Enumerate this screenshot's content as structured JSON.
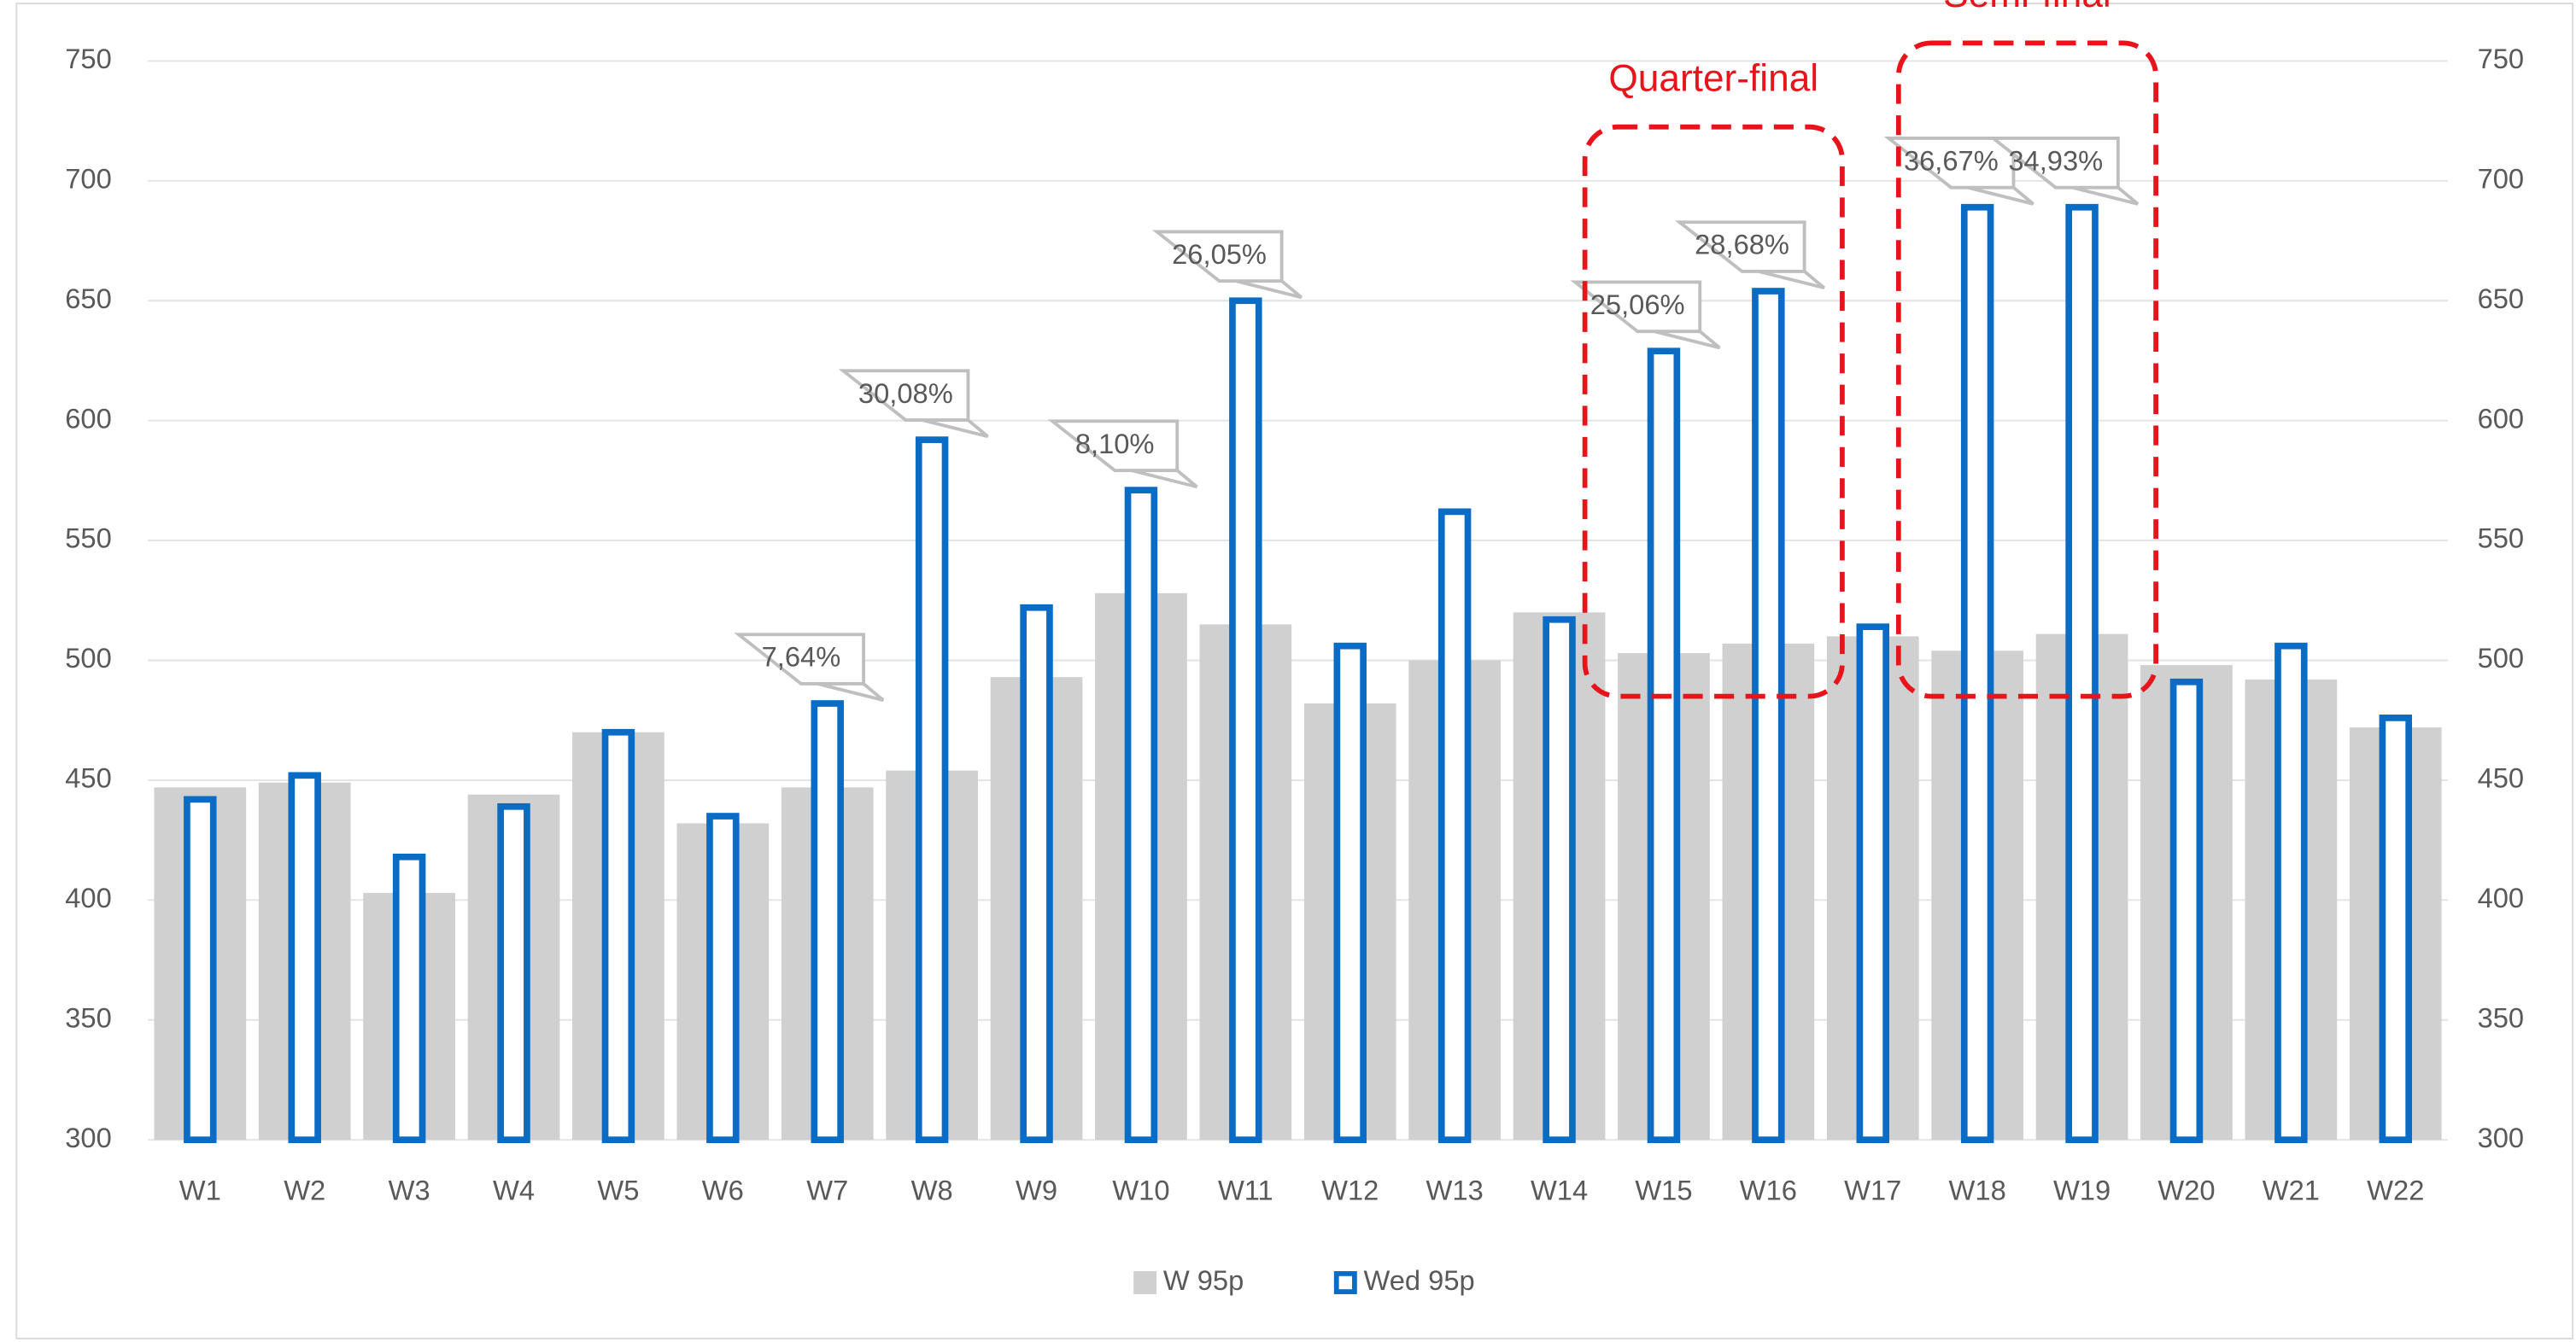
{
  "chart_data": {
    "type": "bar",
    "categories": [
      "W1",
      "W2",
      "W3",
      "W4",
      "W5",
      "W6",
      "W7",
      "W8",
      "W9",
      "W10",
      "W11",
      "W12",
      "W13",
      "W14",
      "W15",
      "W16",
      "W17",
      "W18",
      "W19",
      "W20",
      "W21",
      "W22"
    ],
    "series": [
      {
        "name": "W 95p",
        "color": "#d0d0d0",
        "style": "filled",
        "values": [
          447,
          449,
          403,
          444,
          470,
          432,
          447,
          454,
          493,
          528,
          515,
          482,
          500,
          520,
          503,
          507,
          510,
          504,
          511,
          498,
          492,
          472
        ]
      },
      {
        "name": "Wed 95p",
        "color": "#0a6cc4",
        "style": "outline",
        "values": [
          442,
          452,
          418,
          439,
          470,
          435,
          482,
          592,
          522,
          571,
          650,
          506,
          562,
          517,
          629,
          654,
          514,
          689,
          689,
          491,
          506,
          476
        ]
      }
    ],
    "callouts": [
      {
        "category": "W7",
        "label": "7,64%"
      },
      {
        "category": "W8",
        "label": "30,08%"
      },
      {
        "category": "W10",
        "label": "8,10%"
      },
      {
        "category": "W11",
        "label": "26,05%"
      },
      {
        "category": "W15",
        "label": "25,06%"
      },
      {
        "category": "W16",
        "label": "28,68%"
      },
      {
        "category": "W18",
        "label": "36,67%"
      },
      {
        "category": "W19",
        "label": "34,93%"
      }
    ],
    "annotations": [
      {
        "text": "Quarter-final",
        "categories": [
          "W15",
          "W16"
        ],
        "color": "#e8141c"
      },
      {
        "text": "Semi-final",
        "categories": [
          "W18",
          "W19"
        ],
        "color": "#e8141c"
      }
    ],
    "ylim": [
      300,
      750
    ],
    "yticks": [
      300,
      350,
      400,
      450,
      500,
      550,
      600,
      650,
      700,
      750
    ],
    "y2lim": [
      300,
      750
    ],
    "y2ticks": [
      300,
      350,
      400,
      450,
      500,
      550,
      600,
      650,
      700,
      750
    ],
    "grid": true,
    "legend": "bottom"
  }
}
